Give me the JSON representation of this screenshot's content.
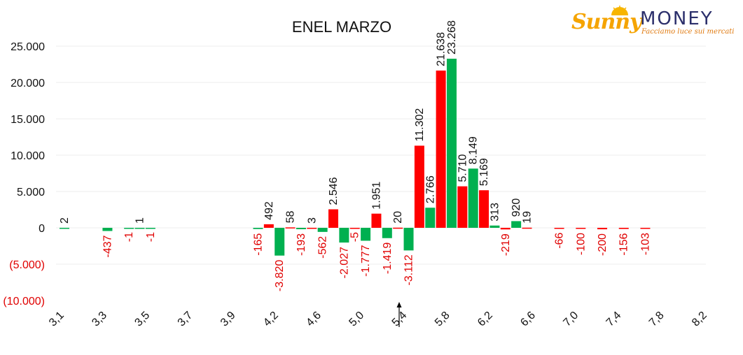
{
  "logo": {
    "brand_left": "Sunny",
    "brand_right": "MONEY",
    "tagline": "Facciamo luce sui mercati"
  },
  "colors": {
    "positive": "#00b050",
    "negative": "#ff0000",
    "negative_label": "#e00000",
    "text": "#111111",
    "grid": "#eeeeee"
  },
  "chart_data": {
    "type": "bar",
    "title": "ENEL MARZO",
    "xlabel": "",
    "ylabel": "",
    "ylim": [
      -10000,
      25000
    ],
    "yticks": [
      {
        "value": 25000,
        "label": "25.000"
      },
      {
        "value": 20000,
        "label": "20.000"
      },
      {
        "value": 15000,
        "label": "15.000"
      },
      {
        "value": 10000,
        "label": "10.000"
      },
      {
        "value": 5000,
        "label": "5.000"
      },
      {
        "value": 0,
        "label": "0"
      },
      {
        "value": -5000,
        "label": "(5.000)"
      },
      {
        "value": -10000,
        "label": "(10.000)"
      }
    ],
    "xlim": [
      3.1,
      8.2
    ],
    "xticks": [
      "3,1",
      "3,3",
      "3,5",
      "3,7",
      "3,9",
      "4,2",
      "4,6",
      "5,0",
      "5,4",
      "5,8",
      "6,2",
      "6,6",
      "7,0",
      "7,4",
      "7,8",
      "8,2"
    ],
    "grid": true,
    "marker": {
      "x": 5.4,
      "label": "current price"
    },
    "bars": [
      {
        "x": 3.1,
        "value": 2,
        "color": "green",
        "label": "2"
      },
      {
        "x": 3.3,
        "value": -437,
        "color": "green",
        "label": "-437"
      },
      {
        "x": 3.4,
        "value": -1,
        "color": "green",
        "label": "-1"
      },
      {
        "x": 3.45,
        "value": 1,
        "color": "green",
        "label": "1"
      },
      {
        "x": 3.5,
        "value": -1,
        "color": "green",
        "label": "-1"
      },
      {
        "x": 4.0,
        "value": -165,
        "color": "green",
        "label": "-165"
      },
      {
        "x": 4.05,
        "value": 492,
        "color": "red",
        "label": "492"
      },
      {
        "x": 4.1,
        "value": -3820,
        "color": "green",
        "label": "-3.820"
      },
      {
        "x": 4.15,
        "value": 58,
        "color": "red",
        "label": "58"
      },
      {
        "x": 4.2,
        "value": -193,
        "color": "green",
        "label": "-193"
      },
      {
        "x": 4.25,
        "value": 3,
        "color": "red",
        "label": "3"
      },
      {
        "x": 4.3,
        "value": -562,
        "color": "green",
        "label": "-562"
      },
      {
        "x": 4.35,
        "value": 2546,
        "color": "red",
        "label": "2.546"
      },
      {
        "x": 4.4,
        "value": -2027,
        "color": "green",
        "label": "-2.027"
      },
      {
        "x": 4.45,
        "value": -5,
        "color": "red",
        "label": "-5"
      },
      {
        "x": 4.5,
        "value": -1777,
        "color": "green",
        "label": "-1.777"
      },
      {
        "x": 4.55,
        "value": 1951,
        "color": "red",
        "label": "1.951"
      },
      {
        "x": 4.6,
        "value": -1419,
        "color": "green",
        "label": "-1.419"
      },
      {
        "x": 4.65,
        "value": 20,
        "color": "red",
        "label": "20"
      },
      {
        "x": 4.7,
        "value": -3112,
        "color": "green",
        "label": "-3.112"
      },
      {
        "x": 4.75,
        "value": 11302,
        "color": "red",
        "label": "11.302"
      },
      {
        "x": 4.8,
        "value": 2766,
        "color": "green",
        "label": "2.766"
      },
      {
        "x": 4.85,
        "value": 21638,
        "color": "red",
        "label": "21.638"
      },
      {
        "x": 4.9,
        "value": 23268,
        "color": "green",
        "label": "23.268"
      },
      {
        "x": 4.95,
        "value": 5710,
        "color": "red",
        "label": "5.710"
      },
      {
        "x": 5.0,
        "value": 8149,
        "color": "green",
        "label": "8.149"
      },
      {
        "x": 5.05,
        "value": 5169,
        "color": "red",
        "label": "5.169"
      },
      {
        "x": 5.1,
        "value": 313,
        "color": "green",
        "label": "313"
      },
      {
        "x": 5.15,
        "value": -219,
        "color": "red",
        "label": "-219"
      },
      {
        "x": 5.2,
        "value": 920,
        "color": "green",
        "label": "920"
      },
      {
        "x": 5.25,
        "value": 19,
        "color": "red",
        "label": "19"
      },
      {
        "x": 5.4,
        "value": -66,
        "color": "red",
        "label": "-66"
      },
      {
        "x": 5.5,
        "value": -100,
        "color": "red",
        "label": "-100"
      },
      {
        "x": 5.6,
        "value": -200,
        "color": "red",
        "label": "-200"
      },
      {
        "x": 5.7,
        "value": -156,
        "color": "red",
        "label": "-156"
      },
      {
        "x": 5.8,
        "value": -103,
        "color": "red",
        "label": "-103"
      }
    ]
  }
}
